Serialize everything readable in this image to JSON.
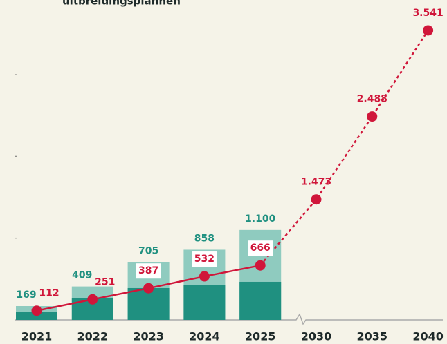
{
  "chart_data": {
    "type": "bar-line",
    "title": "uitbreidingsplannen",
    "categories": [
      "2021",
      "2022",
      "2023",
      "2024",
      "2025",
      "2030",
      "2035",
      "2040"
    ],
    "bars": [
      {
        "color": "#8fcbbf",
        "values": [
          169,
          409,
          705,
          858,
          1100
        ],
        "value_labels": [
          "169",
          "409",
          "705",
          "858",
          "1.100"
        ]
      },
      {
        "color": "#1f9080",
        "values": [
          100,
          262,
          389,
          431,
          465
        ]
      }
    ],
    "line": {
      "color": "#d0163a",
      "values": [
        112,
        251,
        387,
        532,
        666,
        1473,
        2488,
        3541
      ],
      "value_labels": [
        "112",
        "251",
        "387",
        "532",
        "666",
        "1.473",
        "2.488",
        "3.541"
      ],
      "dashed_from": 4
    },
    "ylim": [
      0,
      3600
    ],
    "yticks": [
      1000,
      2000,
      3000
    ]
  }
}
